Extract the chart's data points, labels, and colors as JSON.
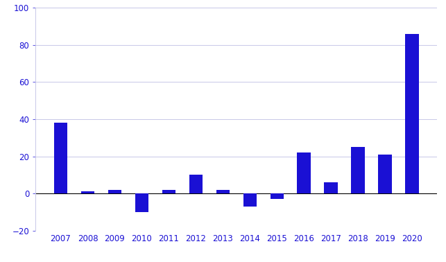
{
  "categories": [
    2007,
    2008,
    2009,
    2010,
    2011,
    2012,
    2013,
    2014,
    2015,
    2016,
    2017,
    2018,
    2019,
    2020
  ],
  "values": [
    38,
    1,
    2,
    -10,
    2,
    10,
    2,
    -7,
    -3,
    22,
    6,
    25,
    21,
    86
  ],
  "bar_color": "#1a10d4",
  "ylim": [
    -20,
    100
  ],
  "yticks": [
    -20,
    0,
    20,
    40,
    60,
    80,
    100
  ],
  "grid_color": "#c8c8e8",
  "background_color": "#ffffff",
  "bar_width": 0.5,
  "tick_color": "#1a10d4",
  "label_fontsize": 8.5,
  "figsize": [
    6.43,
    3.78
  ],
  "dpi": 100
}
